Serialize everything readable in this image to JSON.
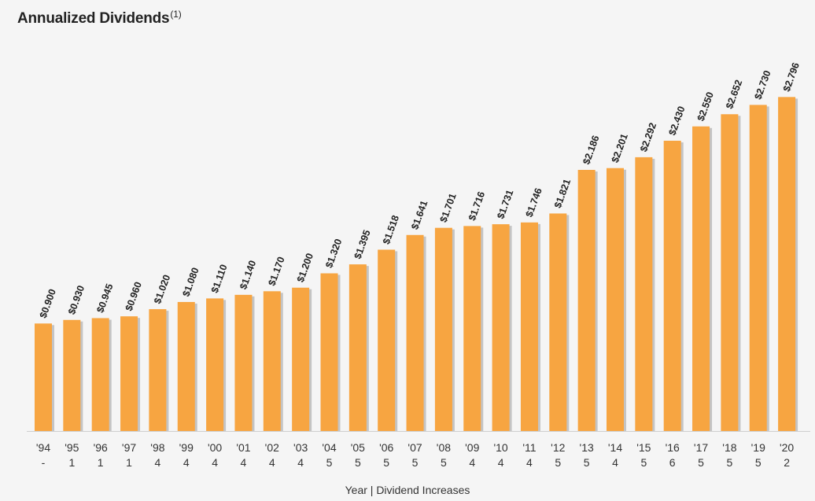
{
  "chart_data": {
    "type": "bar",
    "title": "Annualized Dividends",
    "title_superscript": "(1)",
    "xlabel": "Year | Dividend Increases",
    "ylabel": "",
    "ylim": [
      0,
      3.2
    ],
    "grid": false,
    "legend": "none",
    "categories": [
      "'94",
      "'95",
      "'96",
      "'97",
      "'98",
      "'99",
      "'00",
      "'01",
      "'02",
      "'03",
      "'04",
      "'05",
      "'06",
      "'07",
      "'08",
      "'09",
      "'10",
      "'11",
      "'12",
      "'13",
      "'14",
      "'15",
      "'16",
      "'17",
      "'18",
      "'19",
      "'20"
    ],
    "increases": [
      "-",
      "1",
      "1",
      "1",
      "4",
      "4",
      "4",
      "4",
      "4",
      "4",
      "5",
      "5",
      "5",
      "5",
      "5",
      "4",
      "4",
      "4",
      "5",
      "5",
      "4",
      "5",
      "6",
      "5",
      "5",
      "5",
      "2"
    ],
    "values": [
      0.9,
      0.93,
      0.945,
      0.96,
      1.02,
      1.08,
      1.11,
      1.14,
      1.17,
      1.2,
      1.32,
      1.395,
      1.518,
      1.641,
      1.701,
      1.716,
      1.731,
      1.746,
      1.821,
      2.186,
      2.201,
      2.292,
      2.43,
      2.55,
      2.652,
      2.73,
      2.796
    ],
    "value_labels": [
      "$0.900",
      "$0.930",
      "$0.945",
      "$0.960",
      "$1.020",
      "$1.080",
      "$1.110",
      "$1.140",
      "$1.170",
      "$1.200",
      "$1.320",
      "$1.395",
      "$1.518",
      "$1.641",
      "$1.701",
      "$1.716",
      "$1.731",
      "$1.746",
      "$1.821",
      "$2.186",
      "$2.201",
      "$2.292",
      "$2.430",
      "$2.550",
      "$2.652",
      "$2.730",
      "$2.796"
    ],
    "colors": {
      "bar": "#f7a541",
      "bar_shadow": "#c4c4c4",
      "axis": "#cfcfcf",
      "text": "#222222"
    }
  }
}
